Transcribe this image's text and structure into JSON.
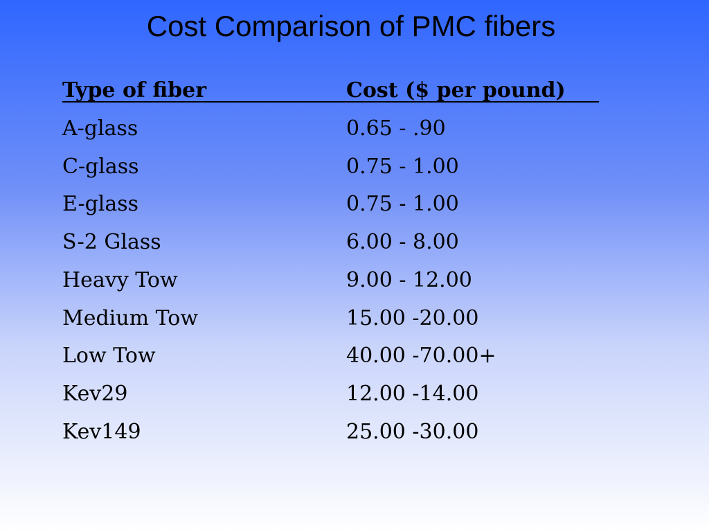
{
  "title": "Cost Comparison of PMC fibers",
  "table": {
    "headers": [
      "Type of fiber",
      "Cost ($ per pound)"
    ],
    "rows": [
      [
        "A-glass",
        "0.65 - .90"
      ],
      [
        "C-glass",
        "0.75 - 1.00"
      ],
      [
        "E-glass",
        "0.75 - 1.00"
      ],
      [
        "S-2 Glass",
        "6.00 - 8.00"
      ],
      [
        "Heavy Tow",
        "9.00 - 12.00"
      ],
      [
        "Medium Tow",
        "15.00 -20.00"
      ],
      [
        "Low Tow",
        "40.00 -70.00+"
      ],
      [
        "Kev29",
        "12.00 -14.00"
      ],
      [
        "Kev149",
        "25.00 -30.00"
      ]
    ]
  }
}
